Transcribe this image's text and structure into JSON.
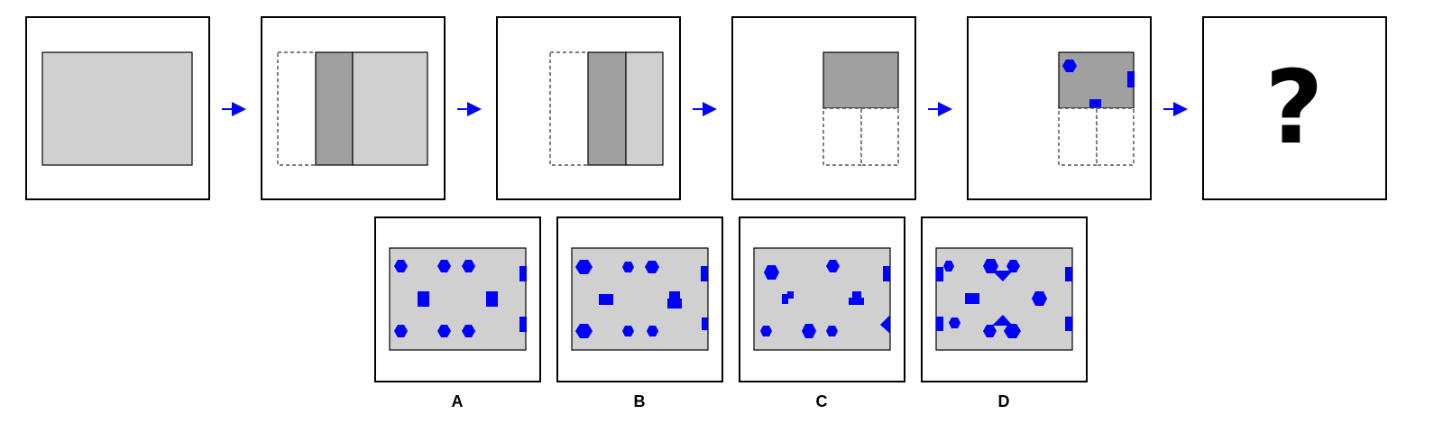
{
  "sequence": {
    "steps": [
      {
        "name": "step-1"
      },
      {
        "name": "step-2"
      },
      {
        "name": "step-3"
      },
      {
        "name": "step-4"
      },
      {
        "name": "step-5"
      },
      {
        "name": "step-6-unknown",
        "question_mark": "?"
      }
    ]
  },
  "options": [
    {
      "label": "A"
    },
    {
      "label": "B"
    },
    {
      "label": "C"
    },
    {
      "label": "D"
    }
  ],
  "colors": {
    "paper": "#d0d0d0",
    "paper_folded": "#a0a0a0",
    "hole": "#0000ff",
    "arrow": "#0000ff",
    "frame": "#000000"
  },
  "icons": {
    "arrow": "right-arrow-icon",
    "hole_round": "hexagon-hole-icon",
    "hole_square": "square-hole-icon"
  }
}
